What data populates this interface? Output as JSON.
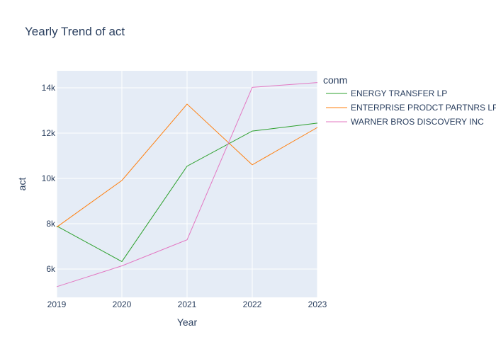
{
  "chart_data": {
    "type": "line",
    "title": "Yearly Trend of act",
    "xlabel": "Year",
    "ylabel": "act",
    "x": [
      2019,
      2020,
      2021,
      2022,
      2023
    ],
    "xlim": [
      2019,
      2023
    ],
    "ylim": [
      4750,
      14750
    ],
    "y_ticks": [
      6000,
      8000,
      10000,
      12000,
      14000
    ],
    "y_tick_labels": [
      "6k",
      "8k",
      "10k",
      "12k",
      "14k"
    ],
    "x_tick_labels": [
      "2019",
      "2020",
      "2021",
      "2022",
      "2023"
    ],
    "grid": true,
    "legend": {
      "title": "conm",
      "position": "right"
    },
    "series": [
      {
        "name": "ENERGY TRANSFER LP",
        "color": "#2ca02c",
        "values": [
          7900,
          6330,
          10540,
          12090,
          12440
        ]
      },
      {
        "name": "ENTERPRISE PRODCT PARTNRS LP",
        "color": "#ff7f0e",
        "values": [
          7850,
          9910,
          13280,
          10600,
          12250
        ]
      },
      {
        "name": "WARNER BROS DISCOVERY INC",
        "color": "#e377c2",
        "values": [
          5220,
          6140,
          7290,
          14020,
          14230
        ]
      }
    ]
  }
}
